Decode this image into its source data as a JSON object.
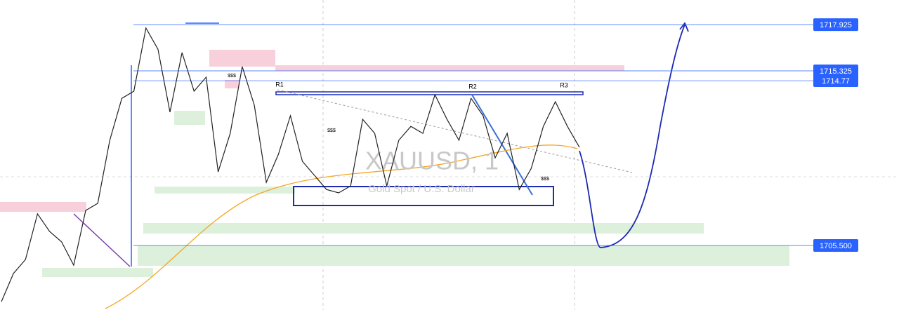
{
  "chart_data": {
    "type": "line",
    "watermark": "XAUUSD, 1",
    "subtitle": "Gold Spot / U.S. Dollar",
    "annotations": [
      "R1",
      "R2",
      "R3",
      "$$$"
    ],
    "series": [
      {
        "name": "XAUUSD",
        "color": "#222222",
        "values": [
          1702.34,
          1703.92,
          1704.71,
          1707.28,
          1706.29,
          1705.7,
          1704.39,
          1707.47,
          1707.87,
          1711.42,
          1713.78,
          1714.18,
          1717.73,
          1716.54,
          1713.0,
          1716.35,
          1714.18,
          1714.97,
          1709.64,
          1711.81,
          1715.56,
          1713.39,
          1709.05,
          1710.63,
          1712.8,
          1710.23,
          1709.44,
          1708.65,
          1708.46,
          1708.85,
          1712.6,
          1711.81,
          1708.85,
          1711.42,
          1712.2,
          1711.81,
          1713.98,
          1712.6,
          1711.42,
          1713.78,
          1712.8,
          1710.43,
          1711.81,
          1708.65,
          1709.84,
          1712.2,
          1713.59,
          1712.2,
          1711.02
        ]
      }
    ],
    "ylim": [
      1701.87,
      1719.31
    ],
    "yticks": [
      1717.925,
      1715.325,
      1714.77,
      {
        "value": 1705.5,
        "label": "1705.500"
      }
    ],
    "grid": true
  }
}
